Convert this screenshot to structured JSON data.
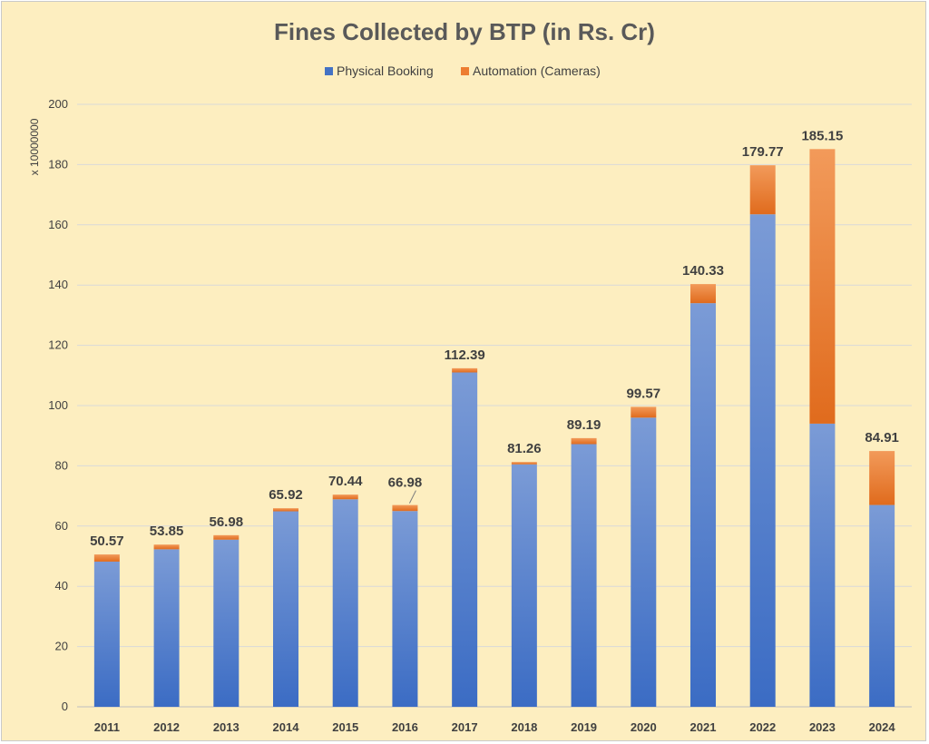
{
  "chart_data": {
    "type": "bar",
    "stacked": true,
    "title": "Fines Collected by BTP (in Rs. Cr)",
    "ylabel": "x 10000000",
    "xlabel": "",
    "ylim": [
      0,
      200
    ],
    "yticks": [
      0,
      20,
      40,
      60,
      80,
      100,
      120,
      140,
      160,
      180,
      200
    ],
    "grid": true,
    "legend_position": "top",
    "categories": [
      "2011",
      "2012",
      "2013",
      "2014",
      "2015",
      "2016",
      "2017",
      "2018",
      "2019",
      "2020",
      "2021",
      "2022",
      "2023",
      "2024"
    ],
    "series": [
      {
        "name": "Physical Booking",
        "color": "#4472c4",
        "values": [
          48.2,
          52.3,
          55.5,
          64.9,
          68.9,
          65.0,
          111.0,
          80.5,
          87.2,
          96.0,
          134.0,
          163.5,
          94.0,
          67.0
        ]
      },
      {
        "name": "Automation (Cameras)",
        "color": "#ed7d31",
        "values": [
          2.37,
          1.55,
          1.48,
          1.02,
          1.54,
          1.98,
          1.39,
          0.76,
          1.99,
          3.57,
          6.33,
          16.27,
          91.15,
          17.91
        ]
      }
    ],
    "totals": [
      "50.57",
      "53.85",
      "56.98",
      "65.92",
      "70.44",
      "66.98",
      "112.39",
      "81.26",
      "89.19",
      "99.57",
      "140.33",
      "179.77",
      "185.15",
      "84.91"
    ]
  }
}
